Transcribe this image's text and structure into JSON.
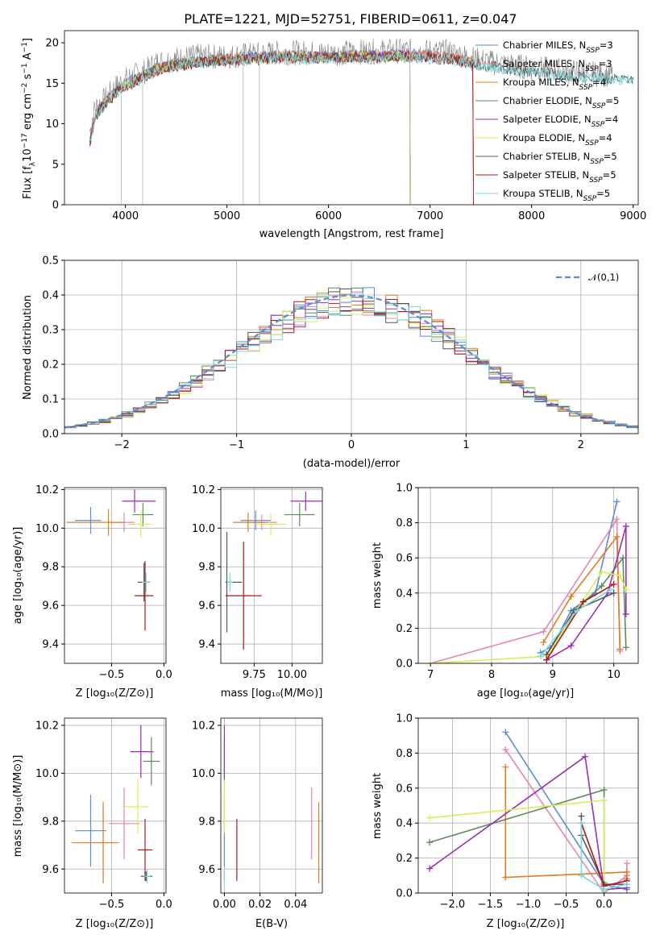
{
  "figure": {
    "title": "PLATE=1221, MJD=52751, FIBERID=0611, z=0.047"
  },
  "series": [
    {
      "name": "Chabrier MILES",
      "nssp": "3",
      "color": "#5b8ad8"
    },
    {
      "name": "Salpeter MILES",
      "nssp": "3",
      "color": "#e684b4"
    },
    {
      "name": "Kroupa MILES",
      "nssp": "4",
      "color": "#e07b20"
    },
    {
      "name": "Chabrier ELODIE",
      "nssp": "5",
      "color": "#5c8a5c"
    },
    {
      "name": "Salpeter ELODIE",
      "nssp": "4",
      "color": "#9a2db8"
    },
    {
      "name": "Kroupa ELODIE",
      "nssp": "4",
      "color": "#d6ee58"
    },
    {
      "name": "Chabrier STELIB",
      "nssp": "5",
      "color": "#555555"
    },
    {
      "name": "Salpeter STELIB",
      "nssp": "5",
      "color": "#b01818"
    },
    {
      "name": "Kroupa STELIB",
      "nssp": "5",
      "color": "#7ad8dc"
    }
  ],
  "chart_data": [
    {
      "id": "spectrum",
      "type": "line",
      "title": "PLATE=1221, MJD=52751, FIBERID=0611, z=0.047",
      "xlabel": "wavelength [Angstrom, rest frame]",
      "ylabel": "Flux [f_λ 10^-17 erg cm^-2 s^-1 A^-1]",
      "xlim": [
        3400,
        9050
      ],
      "ylim": [
        0,
        21.5
      ],
      "xticks": [
        4000,
        5000,
        6000,
        7000,
        8000,
        9000
      ],
      "yticks": [
        0,
        5,
        10,
        15,
        20
      ],
      "x": [
        3650,
        3700,
        3800,
        3900,
        4000,
        4100,
        4200,
        4300,
        4500,
        4700,
        5000,
        5300,
        5600,
        6000,
        6400,
        6800,
        7200,
        7500,
        7800,
        8100,
        8400,
        8800
      ],
      "observed": [
        9,
        12,
        13,
        14.5,
        15.5,
        16,
        16.5,
        17.5,
        18,
        18.3,
        18.3,
        18.6,
        18.8,
        18.7,
        18.9,
        19,
        18.8,
        17.8,
        17.2,
        16.8,
        16.4,
        16
      ],
      "model_mean": [
        8,
        11,
        12.8,
        14,
        15,
        15.6,
        16.2,
        16.9,
        17.5,
        17.8,
        18.2,
        18.3,
        18.5,
        18.4,
        18.5,
        18.6,
        18.3,
        17.6,
        17,
        16.6,
        16.2,
        15.8
      ],
      "model_end": {
        "Chabrier MILES": 7420,
        "Salpeter MILES": 7420,
        "Kroupa MILES": 7420,
        "Salpeter STELIB": 7420,
        "Chabrier ELODIE": 6800,
        "Salpeter ELODIE": 6800,
        "Kroupa ELODIE": 6800,
        "Chabrier STELIB": 9000,
        "Kroupa STELIB": 9000
      },
      "legend": "top-right"
    },
    {
      "id": "residuals",
      "type": "histogram",
      "xlabel": "(data-model)/error",
      "ylabel": "Normed distribution",
      "xlim": [
        -2.5,
        2.5
      ],
      "ylim": [
        0,
        0.5
      ],
      "xticks": [
        -2,
        -1,
        0,
        1,
        2
      ],
      "yticks": [
        0.0,
        0.1,
        0.2,
        0.3,
        0.4,
        0.5
      ],
      "reference": {
        "label": "𝒩(0,1)",
        "mu": 0,
        "sigma": 1
      },
      "bin_width": 0.1,
      "grid": true,
      "legend": "top-right"
    },
    {
      "id": "age_vs_Z",
      "type": "errorbar",
      "xlabel": "Z [log10(Z/Z⊙)]",
      "ylabel": "age  [log10(age/yr)]",
      "xlim": [
        -0.95,
        0.02
      ],
      "ylim": [
        9.3,
        10.21
      ],
      "xticks": [
        -0.5,
        0.0
      ],
      "yticks": [
        9.4,
        9.6,
        9.8,
        10.0,
        10.2
      ],
      "points": [
        {
          "s": 0,
          "x": -0.7,
          "y": 10.04,
          "xerr": [
            0.15,
            0.1
          ],
          "yerr": 0.07
        },
        {
          "s": 1,
          "x": -0.38,
          "y": 10.03,
          "xerr": [
            0.12,
            0.1
          ],
          "yerr": 0.05
        },
        {
          "s": 2,
          "x": -0.53,
          "y": 10.03,
          "xerr": [
            0.4,
            0.15
          ],
          "yerr": 0.07
        },
        {
          "s": 3,
          "x": -0.2,
          "y": 10.07,
          "xerr": [
            0.1,
            0.1
          ],
          "yerr": 0.06
        },
        {
          "s": 4,
          "x": -0.28,
          "y": 10.14,
          "xerr": [
            0.12,
            0.2
          ],
          "yerr": 0.06
        },
        {
          "s": 5,
          "x": -0.22,
          "y": 10.02,
          "xerr": [
            0.13,
            0.1
          ],
          "yerr": 0.07
        },
        {
          "s": 6,
          "x": -0.19,
          "y": 9.72,
          "xerr": [
            0.06,
            0.06
          ],
          "yerr": 0.1
        },
        {
          "s": 7,
          "x": -0.18,
          "y": 9.65,
          "xerr": [
            0.1,
            0.08
          ],
          "yerr": 0.18
        },
        {
          "s": 8,
          "x": -0.17,
          "y": 9.72,
          "xerr": [
            0.04,
            0.04
          ],
          "yerr": 0.05
        }
      ]
    },
    {
      "id": "age_vs_mass",
      "type": "errorbar",
      "xlabel": "mass [log10(M/M⊙)]",
      "ylabel": "",
      "xlim": [
        9.53,
        10.2
      ],
      "ylim": [
        9.3,
        10.21
      ],
      "xticks": [
        9.75,
        10.0
      ],
      "yticks": [
        9.4,
        9.6,
        9.8,
        10.0,
        10.2
      ],
      "points": [
        {
          "s": 0,
          "x": 9.76,
          "y": 10.04,
          "xerr": [
            0.1,
            0.1
          ],
          "yerr": 0.05
        },
        {
          "s": 1,
          "x": 9.8,
          "y": 10.03,
          "xerr": [
            0.1,
            0.1
          ],
          "yerr": 0.04
        },
        {
          "s": 2,
          "x": 9.71,
          "y": 10.03,
          "xerr": [
            0.1,
            0.12
          ],
          "yerr": 0.05
        },
        {
          "s": 3,
          "x": 10.05,
          "y": 10.07,
          "xerr": [
            0.1,
            0.1
          ],
          "yerr": 0.06
        },
        {
          "s": 4,
          "x": 10.09,
          "y": 10.14,
          "xerr": [
            0.1,
            0.12
          ],
          "yerr": 0.05
        },
        {
          "s": 5,
          "x": 9.86,
          "y": 10.02,
          "xerr": [
            0.1,
            0.1
          ],
          "yerr": 0.06
        },
        {
          "s": 6,
          "x": 9.57,
          "y": 9.72,
          "xerr": [
            0.01,
            0.1
          ],
          "yerr": 0.26
        },
        {
          "s": 7,
          "x": 9.68,
          "y": 9.65,
          "xerr": [
            0.12,
            0.12
          ],
          "yerr": 0.28
        },
        {
          "s": 8,
          "x": 9.59,
          "y": 9.72,
          "xerr": [
            0.02,
            0.02
          ],
          "yerr": 0.05
        }
      ]
    },
    {
      "id": "mass_weight_vs_age",
      "type": "line",
      "xlabel": "age  [log10(age/yr)]",
      "ylabel": "mass weight",
      "xlim": [
        6.8,
        10.4
      ],
      "ylim": [
        0,
        1.0
      ],
      "xticks": [
        7,
        8,
        9,
        10
      ],
      "yticks": [
        0.0,
        0.2,
        0.4,
        0.6,
        0.8,
        1.0
      ],
      "series": [
        {
          "s": 0,
          "x": [
            8.8,
            9.0,
            9.3,
            9.7,
            10.05
          ],
          "y": [
            0.06,
            0.1,
            0.3,
            0.4,
            0.92
          ]
        },
        {
          "s": 1,
          "x": [
            7.0,
            8.85,
            10.05,
            10.1
          ],
          "y": [
            0.0,
            0.18,
            0.82,
            0.07
          ]
        },
        {
          "s": 2,
          "x": [
            8.85,
            9.3,
            10.05,
            10.1
          ],
          "y": [
            0.12,
            0.38,
            0.72,
            0.08
          ]
        },
        {
          "s": 3,
          "x": [
            8.9,
            9.35,
            9.8,
            10.15,
            10.2
          ],
          "y": [
            0.05,
            0.3,
            0.44,
            0.6,
            0.09
          ]
        },
        {
          "s": 4,
          "x": [
            8.9,
            9.3,
            9.9,
            10.2,
            10.2
          ],
          "y": [
            0.02,
            0.1,
            0.4,
            0.78,
            0.28
          ]
        },
        {
          "s": 5,
          "x": [
            7.0,
            8.9,
            9.8,
            10.1,
            10.2
          ],
          "y": [
            0.0,
            0.04,
            0.52,
            0.5,
            0.42
          ]
        },
        {
          "s": 6,
          "x": [
            8.9,
            9.35,
            10.0
          ],
          "y": [
            0.05,
            0.3,
            0.4
          ]
        },
        {
          "s": 7,
          "x": [
            8.9,
            9.5,
            10.0
          ],
          "y": [
            0.02,
            0.35,
            0.45
          ]
        },
        {
          "s": 8,
          "x": [
            8.8,
            9.4,
            9.95
          ],
          "y": [
            0.04,
            0.3,
            0.42
          ]
        }
      ]
    },
    {
      "id": "mass_vs_Z",
      "type": "errorbar",
      "xlabel": "Z [log10(Z/Z⊙)]",
      "ylabel": "mass [log10(M/M⊙)]",
      "xlim": [
        -0.95,
        0.02
      ],
      "ylim": [
        9.5,
        10.23
      ],
      "xticks": [
        -0.5,
        0.0
      ],
      "yticks": [
        9.6,
        9.8,
        10.0,
        10.2
      ],
      "points": [
        {
          "s": 0,
          "x": -0.7,
          "y": 9.76,
          "xerr": [
            0.15,
            0.15
          ],
          "yerr": 0.15
        },
        {
          "s": 1,
          "x": -0.38,
          "y": 9.79,
          "xerr": [
            0.15,
            0.15
          ],
          "yerr": 0.15
        },
        {
          "s": 2,
          "x": -0.58,
          "y": 9.71,
          "xerr": [
            0.3,
            0.15
          ],
          "yerr": 0.17
        },
        {
          "s": 3,
          "x": -0.12,
          "y": 10.05,
          "xerr": [
            0.08,
            0.08
          ],
          "yerr": 0.1
        },
        {
          "s": 4,
          "x": -0.22,
          "y": 10.09,
          "xerr": [
            0.1,
            0.12
          ],
          "yerr": 0.11
        },
        {
          "s": 5,
          "x": -0.25,
          "y": 9.86,
          "xerr": [
            0.15,
            0.1
          ],
          "yerr": 0.11
        },
        {
          "s": 6,
          "x": -0.17,
          "y": 9.57,
          "xerr": [
            0.05,
            0.06
          ],
          "yerr": 0.02
        },
        {
          "s": 7,
          "x": -0.18,
          "y": 9.68,
          "xerr": [
            0.07,
            0.07
          ],
          "yerr": 0.13
        },
        {
          "s": 8,
          "x": -0.16,
          "y": 9.57,
          "xerr": [
            0.03,
            0.03
          ],
          "yerr": 0.03
        }
      ]
    },
    {
      "id": "mass_vs_ebv",
      "type": "errorbar",
      "xlabel": "E(B-V)",
      "ylabel": "",
      "xlim": [
        -0.002,
        0.055
      ],
      "ylim": [
        9.5,
        10.23
      ],
      "xticks": [
        0.0,
        0.02,
        0.04
      ],
      "yticks": [
        9.6,
        9.8,
        10.0,
        10.2
      ],
      "points": [
        {
          "s": 0,
          "x": 0.0,
          "y": 9.76,
          "yerr": 0.15
        },
        {
          "s": 1,
          "x": 0.049,
          "y": 9.79,
          "yerr": 0.15
        },
        {
          "s": 2,
          "x": 0.053,
          "y": 9.71,
          "yerr": 0.17
        },
        {
          "s": 3,
          "x": 0.0,
          "y": 10.05,
          "yerr": 0.1
        },
        {
          "s": 4,
          "x": 0.0,
          "y": 10.09,
          "yerr": 0.11
        },
        {
          "s": 5,
          "x": 0.0,
          "y": 9.86,
          "yerr": 0.11
        },
        {
          "s": 6,
          "x": 0.0,
          "y": 9.57,
          "yerr": 0.02
        },
        {
          "s": 7,
          "x": 0.007,
          "y": 9.68,
          "yerr": 0.13
        },
        {
          "s": 8,
          "x": 0.0,
          "y": 9.57,
          "yerr": 0.03
        }
      ]
    },
    {
      "id": "mass_weight_vs_Z",
      "type": "line",
      "xlabel": "Z [log10(Z/Z⊙)]",
      "ylabel": "mass weight",
      "xlim": [
        -2.45,
        0.45
      ],
      "ylim": [
        0,
        1.0
      ],
      "xticks": [
        -2.0,
        -1.5,
        -1.0,
        -0.5,
        0.0
      ],
      "yticks": [
        0.0,
        0.2,
        0.4,
        0.6,
        0.8,
        1.0
      ],
      "series": [
        {
          "s": 0,
          "x": [
            -1.3,
            0.0,
            0.3
          ],
          "y": [
            0.92,
            0.05,
            0.02
          ]
        },
        {
          "s": 1,
          "x": [
            -1.3,
            0.0,
            0.3,
            0.3
          ],
          "y": [
            0.82,
            0.0,
            0.1,
            0.17
          ]
        },
        {
          "s": 2,
          "x": [
            -1.3,
            -1.3,
            0.3,
            0.3
          ],
          "y": [
            0.72,
            0.09,
            0.12,
            0.08
          ]
        },
        {
          "s": 3,
          "x": [
            -2.3,
            0.0,
            0.0
          ],
          "y": [
            0.29,
            0.59,
            0.06
          ]
        },
        {
          "s": 4,
          "x": [
            -2.3,
            -0.25,
            0.0,
            0.3
          ],
          "y": [
            0.14,
            0.78,
            0.02,
            0.03
          ]
        },
        {
          "s": 5,
          "x": [
            -2.3,
            0.0,
            0.0
          ],
          "y": [
            0.43,
            0.53,
            0.02
          ]
        },
        {
          "s": 6,
          "x": [
            -0.3,
            -0.3,
            0.0,
            0.3
          ],
          "y": [
            0.44,
            0.33,
            0.05,
            0.05
          ]
        },
        {
          "s": 7,
          "x": [
            -0.3,
            0.0,
            0.3
          ],
          "y": [
            0.4,
            0.04,
            0.07
          ]
        },
        {
          "s": 8,
          "x": [
            -0.3,
            -0.3,
            0.0,
            0.3
          ],
          "y": [
            0.4,
            0.1,
            0.02,
            0.05
          ]
        }
      ]
    }
  ]
}
